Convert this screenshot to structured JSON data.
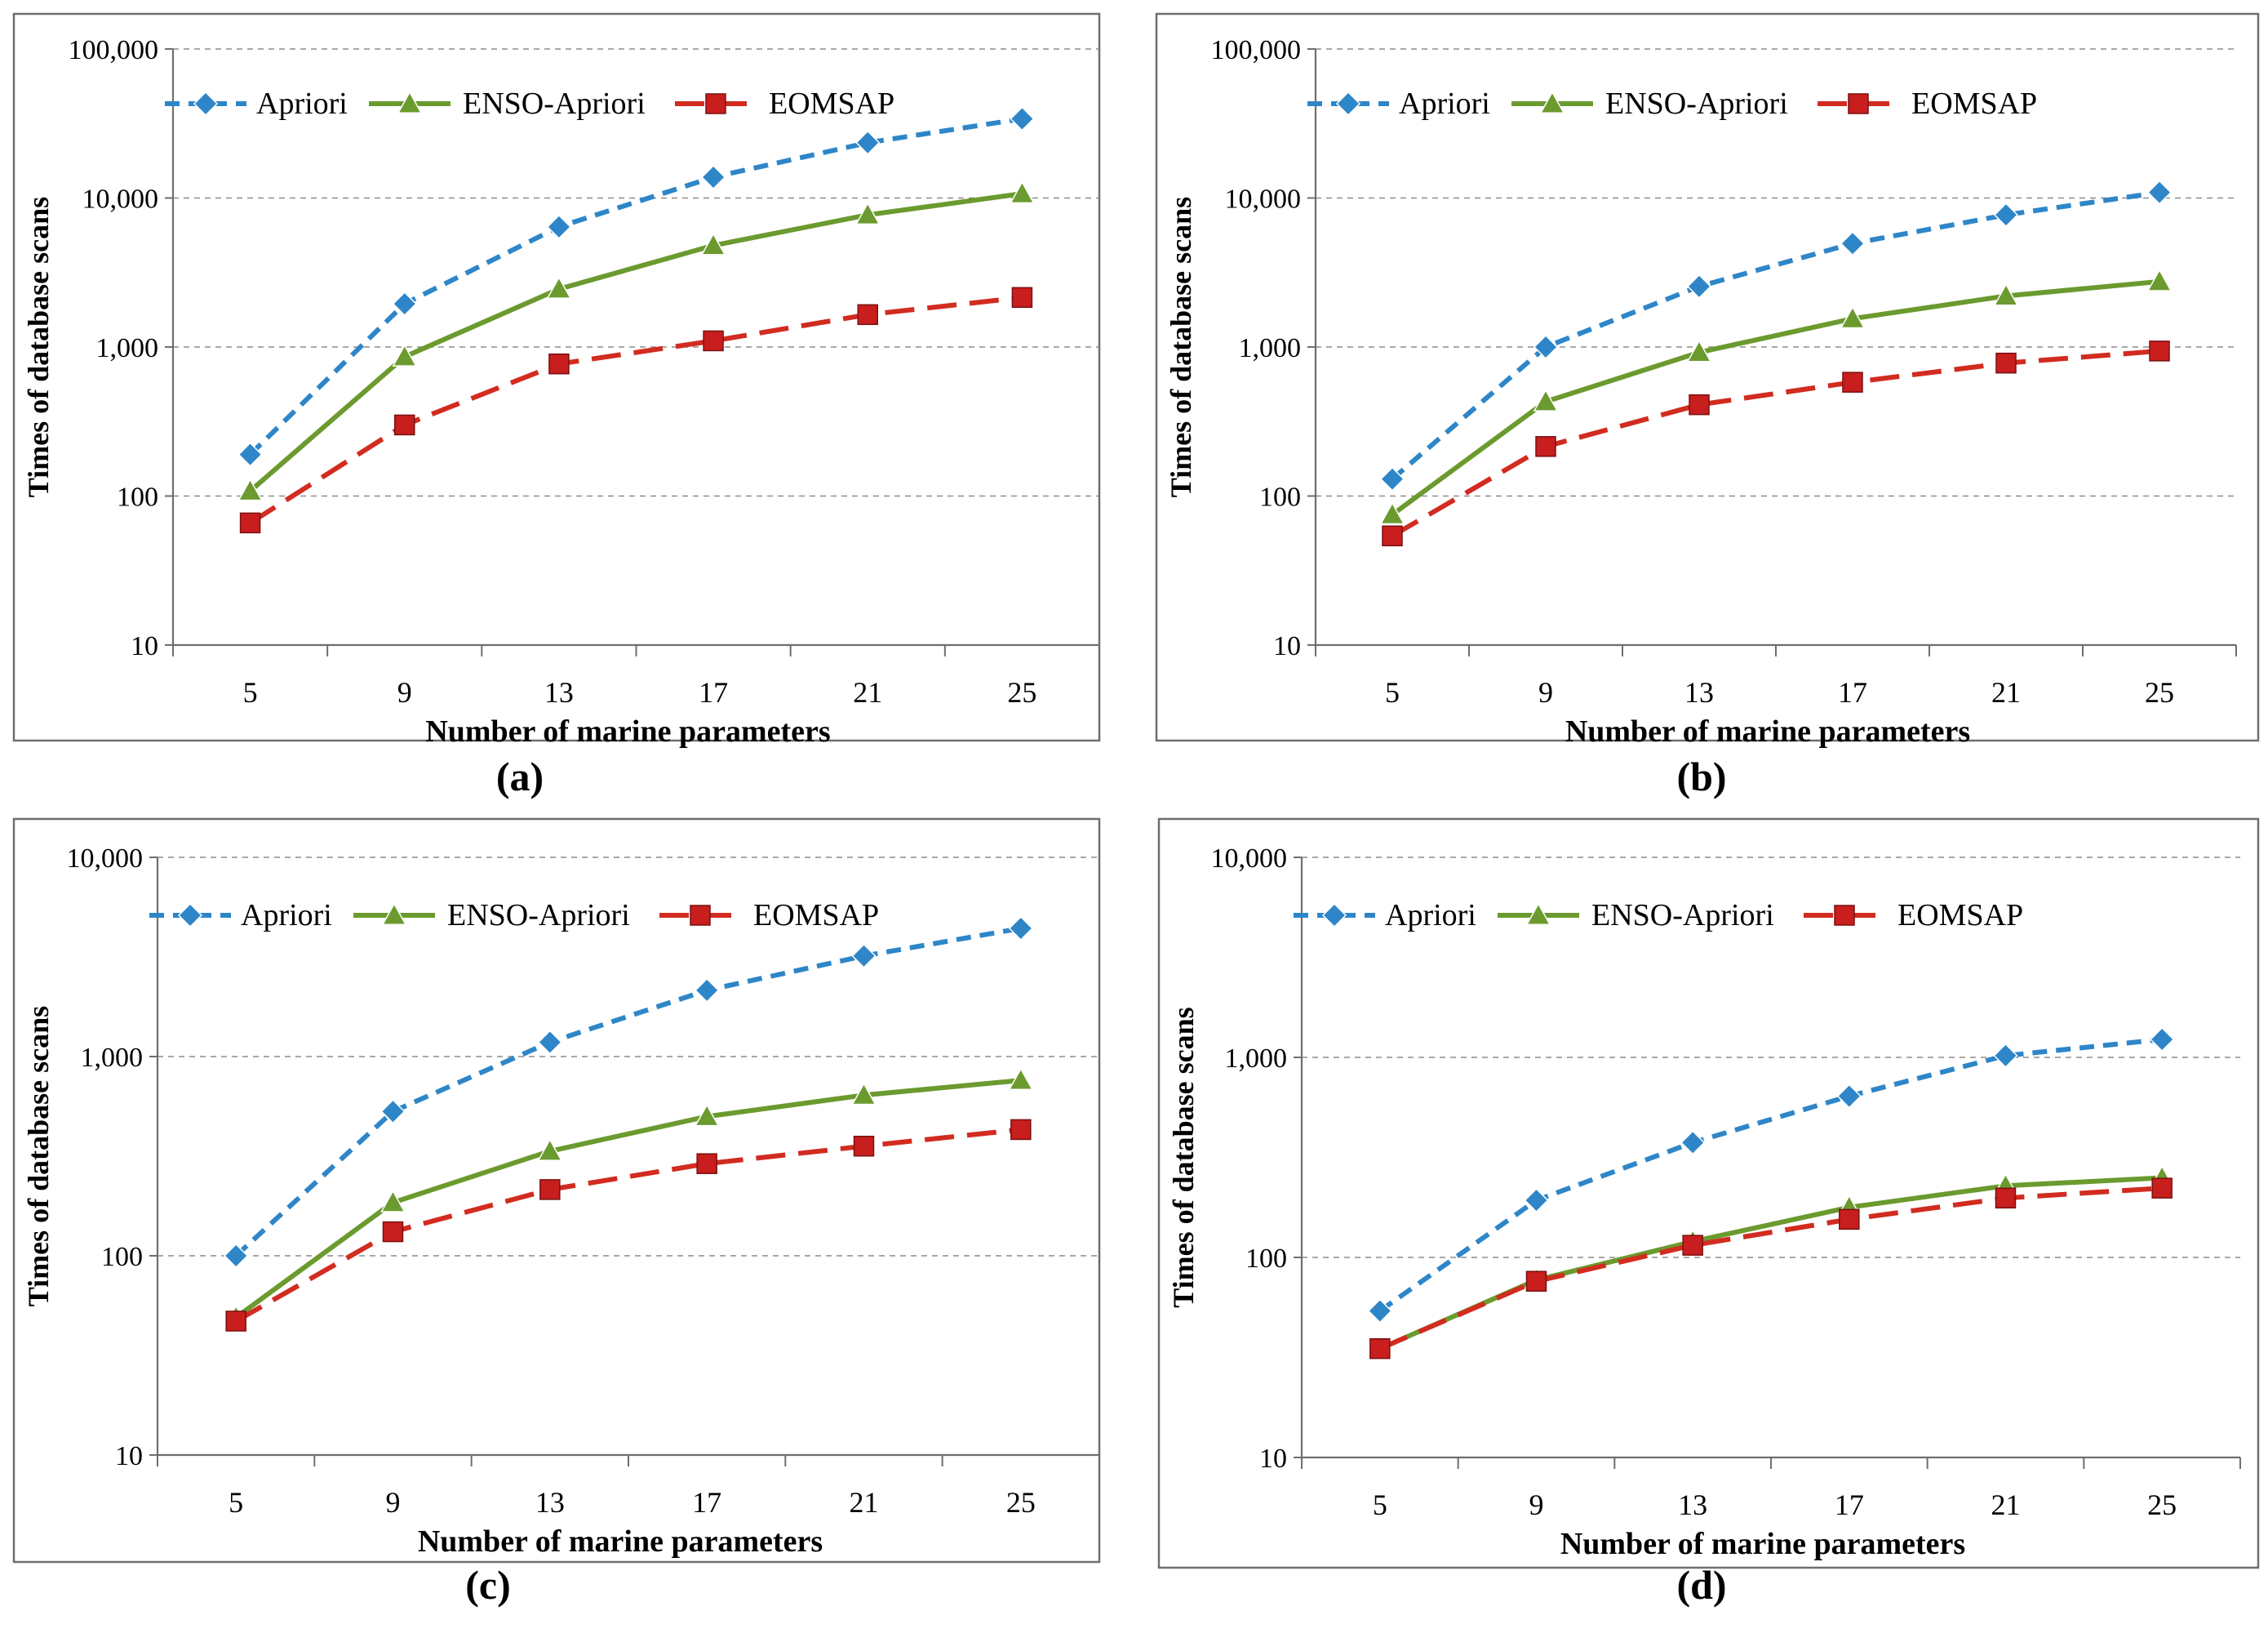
{
  "figure": {
    "panels": [
      "a",
      "b",
      "c",
      "d"
    ]
  },
  "colors": {
    "apriori": "#2E86C8",
    "enso": "#6B9A2E",
    "eomsap": "#D22B20",
    "eomsap_marker": "#C81E1E",
    "grid": "#8C8C8C",
    "frame": "#6E6E6E"
  },
  "chart_data": [
    {
      "type": "line",
      "panel_label": "(a)",
      "xlabel": "Number of marine parameters",
      "ylabel": "Times of database scans",
      "yscale": "log",
      "ylim": [
        10,
        100000
      ],
      "yticks": [
        "10",
        "100",
        "1,000",
        "10,000",
        "100,000"
      ],
      "categories": [
        "5",
        "9",
        "13",
        "17",
        "21",
        "25"
      ],
      "legend": "top",
      "series": [
        {
          "name": "Apriori",
          "key": "apriori",
          "values": [
            190,
            1950,
            6400,
            13800,
            23500,
            34000
          ]
        },
        {
          "name": "ENSO-Apriori",
          "key": "enso",
          "values": [
            108,
            860,
            2450,
            4800,
            7700,
            10700
          ]
        },
        {
          "name": "EOMSAP",
          "key": "eomsap",
          "values": [
            66,
            300,
            770,
            1100,
            1650,
            2150
          ]
        }
      ]
    },
    {
      "type": "line",
      "panel_label": "(b)",
      "xlabel": "Number of marine parameters",
      "ylabel": "Times of database scans",
      "yscale": "log",
      "ylim": [
        10,
        100000
      ],
      "yticks": [
        "10",
        "100",
        "1,000",
        "10,000",
        "100,000"
      ],
      "categories": [
        "5",
        "9",
        "13",
        "17",
        "21",
        "25"
      ],
      "legend": "top",
      "series": [
        {
          "name": "Apriori",
          "key": "apriori",
          "values": [
            130,
            1000,
            2550,
            4950,
            7700,
            10900
          ]
        },
        {
          "name": "ENSO-Apriori",
          "key": "enso",
          "values": [
            75,
            430,
            920,
            1550,
            2200,
            2750
          ]
        },
        {
          "name": "EOMSAP",
          "key": "eomsap",
          "values": [
            54,
            215,
            410,
            580,
            780,
            940
          ]
        }
      ]
    },
    {
      "type": "line",
      "panel_label": "(c)",
      "xlabel": "Number of marine parameters",
      "ylabel": "Times of database scans",
      "yscale": "log",
      "ylim": [
        10,
        10000
      ],
      "yticks": [
        "10",
        "100",
        "1,000",
        "10,000"
      ],
      "categories": [
        "5",
        "9",
        "13",
        "17",
        "21",
        "25"
      ],
      "legend": "top",
      "series": [
        {
          "name": "Apriori",
          "key": "apriori",
          "values": [
            100,
            530,
            1180,
            2150,
            3200,
            4400
          ]
        },
        {
          "name": "ENSO-Apriori",
          "key": "enso",
          "values": [
            49,
            185,
            335,
            500,
            640,
            760
          ]
        },
        {
          "name": "EOMSAP",
          "key": "eomsap",
          "values": [
            47,
            132,
            215,
            290,
            355,
            430
          ]
        }
      ]
    },
    {
      "type": "line",
      "panel_label": "(d)",
      "xlabel": "Number of marine parameters",
      "ylabel": "Times of database scans",
      "yscale": "log",
      "ylim": [
        10,
        10000
      ],
      "yticks": [
        "10",
        "100",
        "1,000",
        "10,000"
      ],
      "categories": [
        "5",
        "9",
        "13",
        "17",
        "21",
        "25"
      ],
      "legend": "top",
      "series": [
        {
          "name": "Apriori",
          "key": "apriori",
          "values": [
            54,
            193,
            375,
            640,
            1020,
            1230
          ]
        },
        {
          "name": "ENSO-Apriori",
          "key": "enso",
          "values": [
            35,
            77,
            120,
            178,
            228,
            250
          ]
        },
        {
          "name": "EOMSAP",
          "key": "eomsap",
          "values": [
            35,
            76,
            115,
            155,
            198,
            222
          ]
        }
      ]
    }
  ]
}
